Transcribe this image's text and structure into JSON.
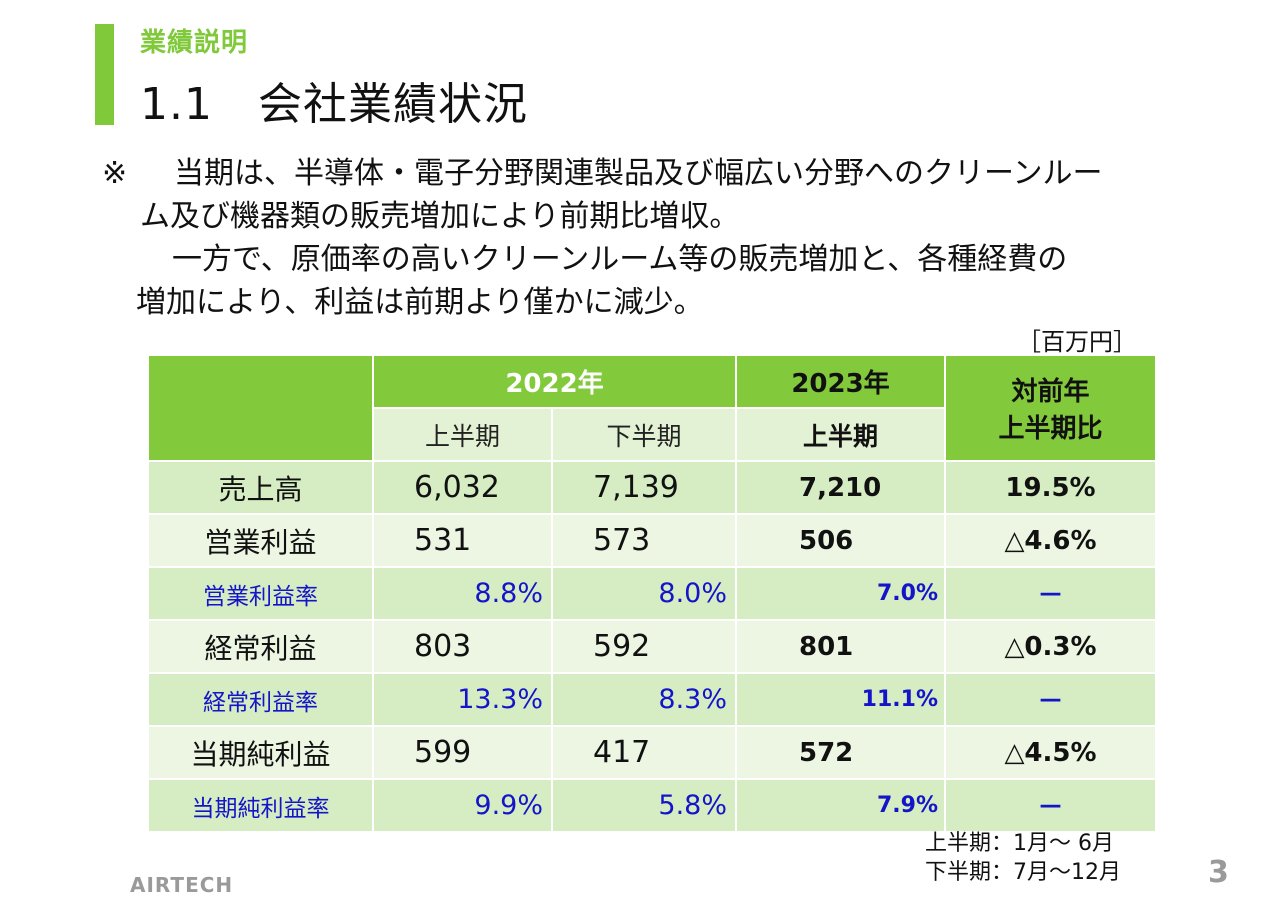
{
  "header": {
    "section": "業績説明",
    "title": "1.1　会社業績状況"
  },
  "notes": {
    "mark": "※",
    "line1": "当期は、半導体・電子分野関連製品及び幅広い分野へのクリーンルー",
    "line2": "ム及び機器類の販売増加により前期比増収。",
    "line3": "一方で、原価率の高いクリーンルーム等の販売増加と、各種経費の",
    "line4": "増加により、利益は前期より僅かに減少。"
  },
  "unit": "［百万円］",
  "table": {
    "year_2022": "2022年",
    "year_2023": "2023年",
    "compare": [
      "対前年",
      "上半期比"
    ],
    "first_half": "上半期",
    "second_half": "下半期",
    "rows": [
      {
        "label": "売上高",
        "h1_2022": "6,032",
        "h2_2022": "7,139",
        "h1_2023": "7,210",
        "yoy": "19.5%"
      },
      {
        "label": "営業利益",
        "h1_2022": "531",
        "h2_2022": "573",
        "h1_2023": "506",
        "yoy": "△4.6%"
      },
      {
        "label": "営業利益率",
        "h1_2022": "8.8%",
        "h2_2022": "8.0%",
        "h1_2023": "7.0%",
        "yoy": "－"
      },
      {
        "label": "経常利益",
        "h1_2022": "803",
        "h2_2022": "592",
        "h1_2023": "801",
        "yoy": "△0.3%"
      },
      {
        "label": "経常利益率",
        "h1_2022": "13.3%",
        "h2_2022": "8.3%",
        "h1_2023": "11.1%",
        "yoy": "－"
      },
      {
        "label": "当期純利益",
        "h1_2022": "599",
        "h2_2022": "417",
        "h1_2023": "572",
        "yoy": "△4.5%"
      },
      {
        "label": "当期純利益率",
        "h1_2022": "9.9%",
        "h2_2022": "5.8%",
        "h1_2023": "7.9%",
        "yoy": "－"
      }
    ]
  },
  "legend": {
    "first": "上半期：1月～ 6月",
    "second": "下半期：7月～12月"
  },
  "footer": {
    "logo": "AIRTECH",
    "page": "3"
  },
  "colors": {
    "accent": "#7fc93a",
    "ratio_text": "#1414c8"
  }
}
